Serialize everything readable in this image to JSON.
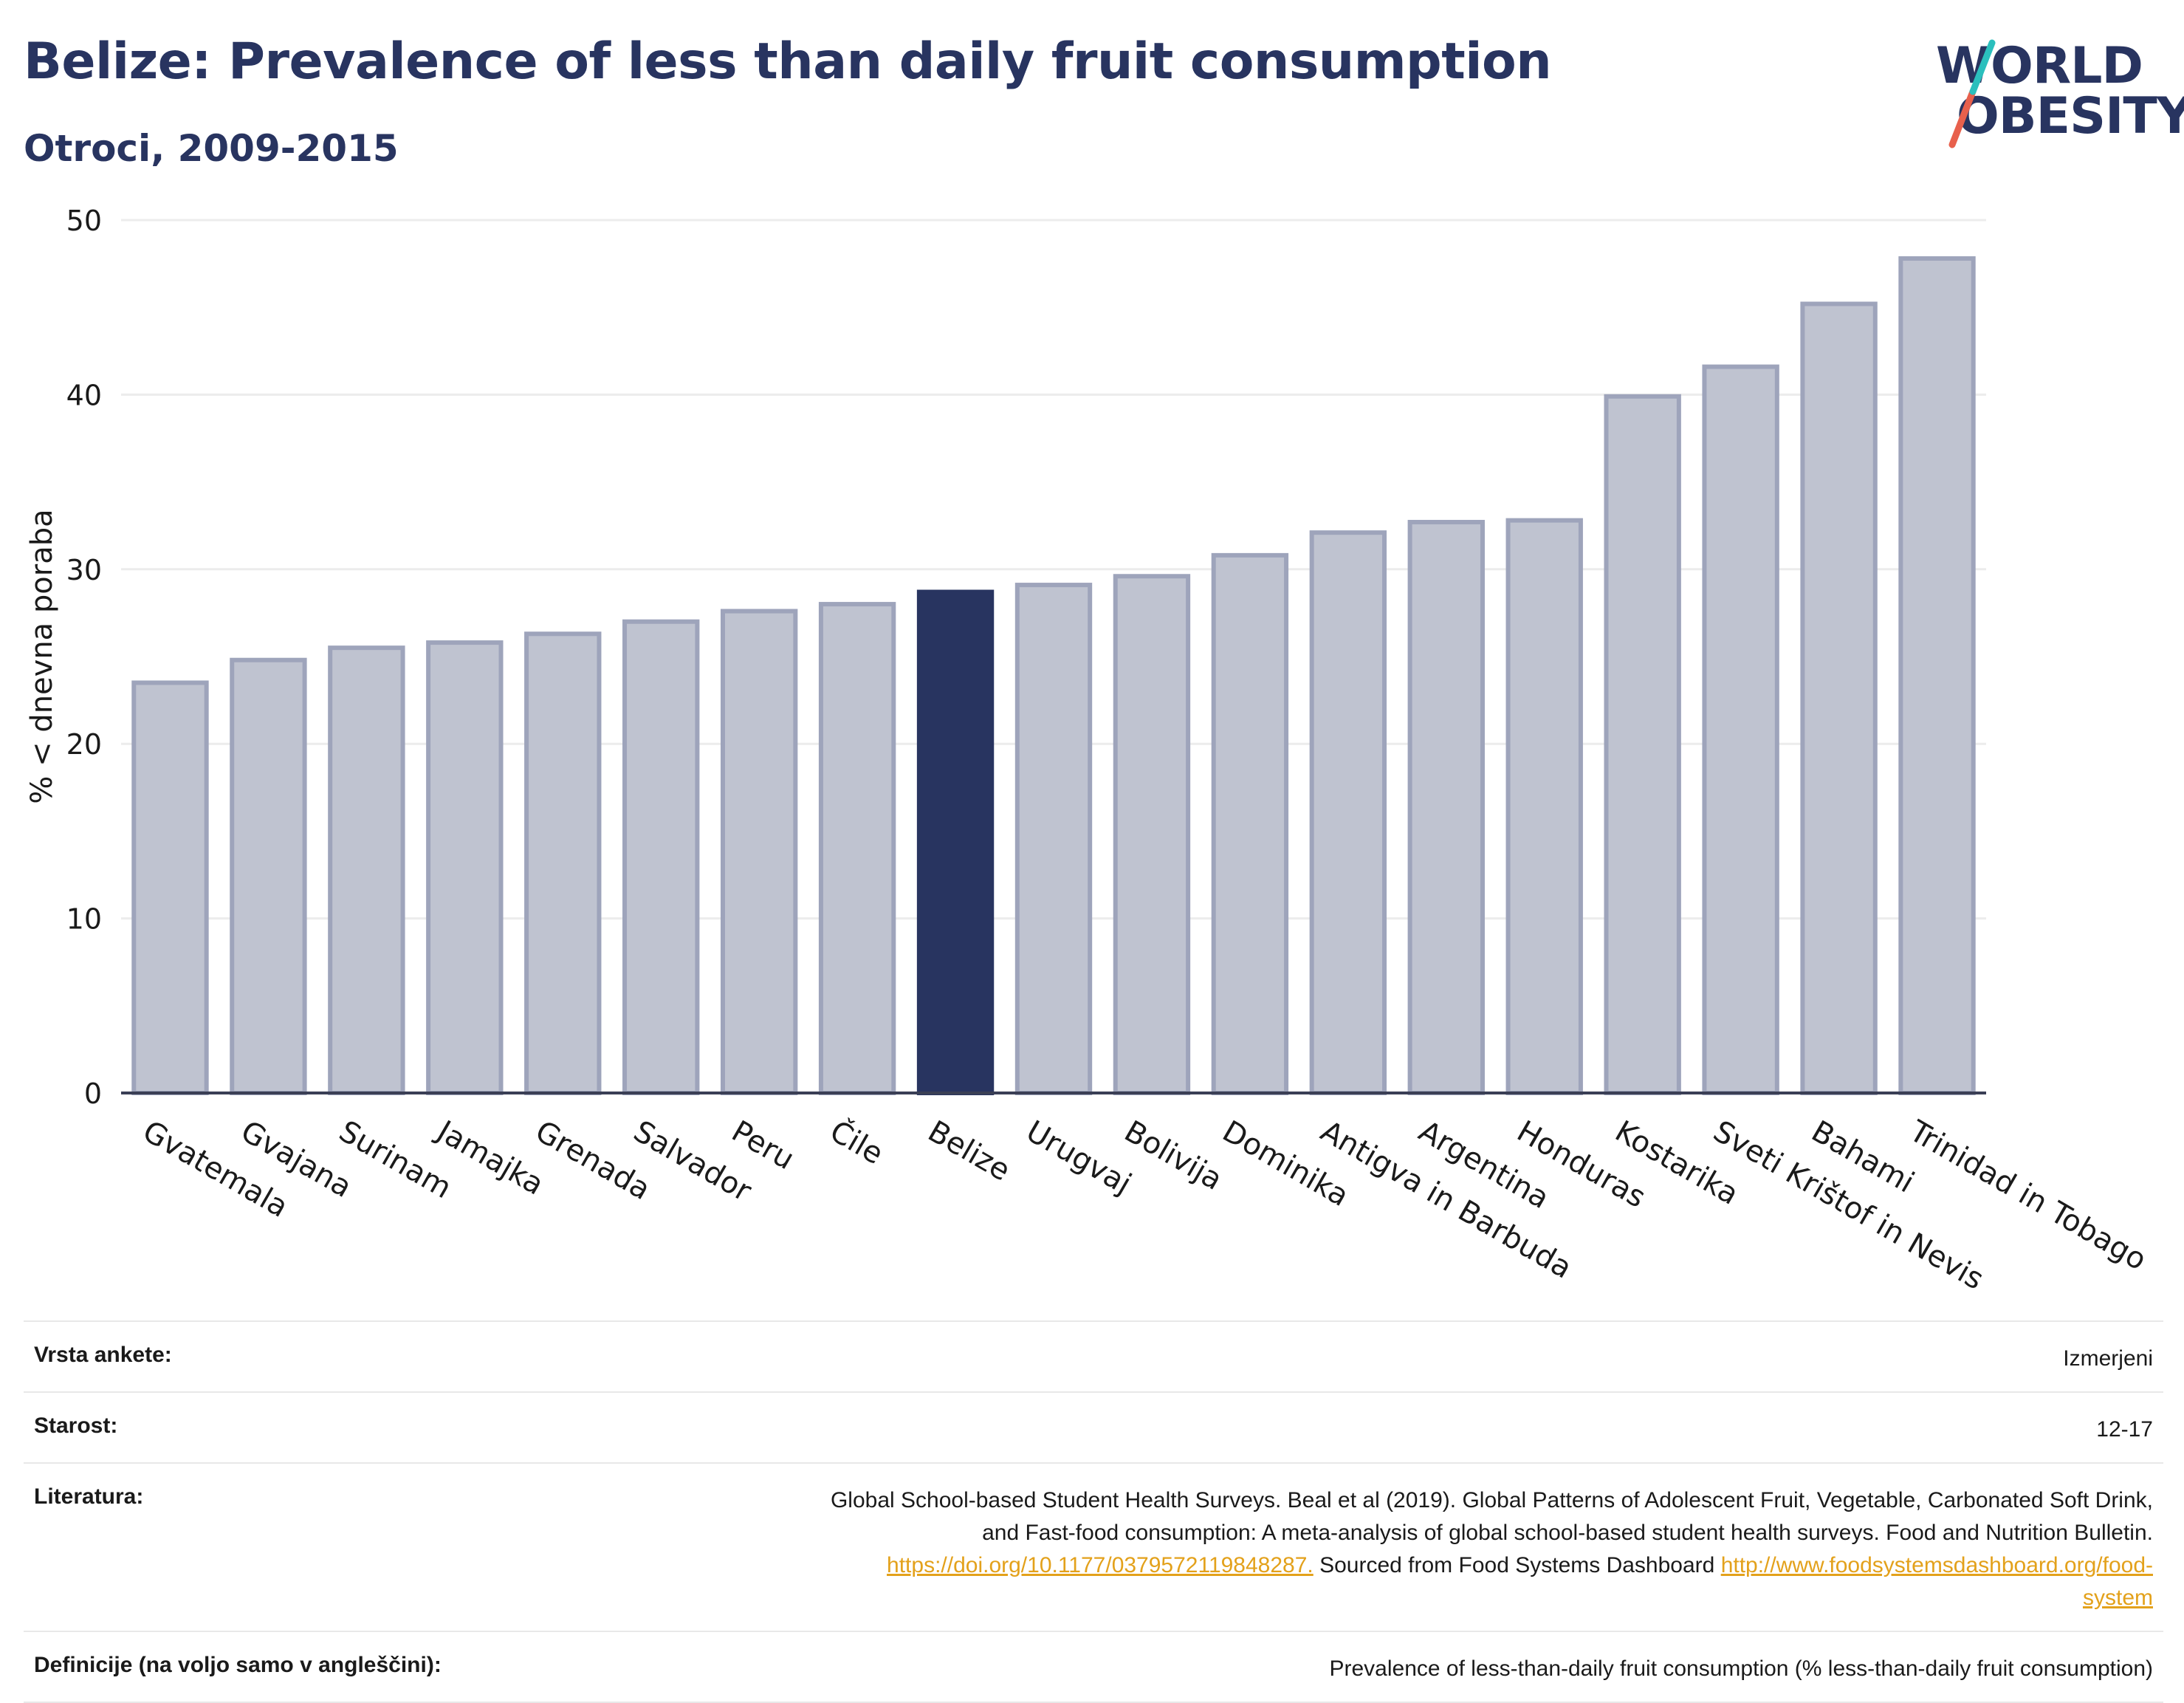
{
  "header": {
    "title": "Belize: Prevalence of less than daily fruit consumption",
    "subtitle": "Otroci, 2009-2015"
  },
  "logo": {
    "line1": "WORLD",
    "line2": "OBESITY",
    "accent": "#e8604c",
    "accent2": "#2bbfbd"
  },
  "chart_data": {
    "type": "bar",
    "ylabel": "% < dnevna poraba",
    "ylim": [
      0,
      50
    ],
    "yticks": [
      0,
      10,
      20,
      30,
      40,
      50
    ],
    "grid": true,
    "highlight": "Belize",
    "colors": {
      "bar": "#bfc3d0",
      "bar_edge": "#9ea4bb",
      "highlight": "#283460",
      "grid": "#ececec",
      "axis": "#3a3f55"
    },
    "categories": [
      "Gvatemala",
      "Gvajana",
      "Surinam",
      "Jamajka",
      "Grenada",
      "Salvador",
      "Peru",
      "Čile",
      "Belize",
      "Urugvaj",
      "Bolivija",
      "Dominika",
      "Antigva in Barbuda",
      "Argentina",
      "Honduras",
      "Kostarika",
      "Sveti Krištof in Nevis",
      "Bahami",
      "Trinidad in Tobago"
    ],
    "values": [
      23.5,
      24.8,
      25.5,
      25.8,
      26.3,
      27.0,
      27.6,
      28.0,
      28.7,
      29.1,
      29.6,
      30.8,
      32.1,
      32.7,
      32.8,
      39.9,
      41.6,
      45.2,
      47.8
    ]
  },
  "meta": {
    "survey_label": "Vrsta ankete:",
    "survey_value": "Izmerjeni",
    "age_label": "Starost:",
    "age_value": "12-17",
    "lit_label": "Literatura:",
    "lit_text1": "Global School-based Student Health Surveys. Beal et al (2019). Global Patterns of Adolescent Fruit, Vegetable, Carbonated Soft Drink,",
    "lit_text2": "and Fast-food consumption: A meta-analysis of global school-based student health surveys. Food and Nutrition Bulletin.",
    "lit_link1": "https://doi.org/10.1177/0379572119848287.",
    "lit_text3": " Sourced from Food Systems Dashboard ",
    "lit_link2a": "http://www.foodsystemsdashboard.org/food-",
    "lit_link2b": "system",
    "def_label": "Definicije (na voljo samo v angleščini):",
    "def_value": "Prevalence of less-than-daily fruit consumption (% less-than-daily fruit consumption)"
  }
}
